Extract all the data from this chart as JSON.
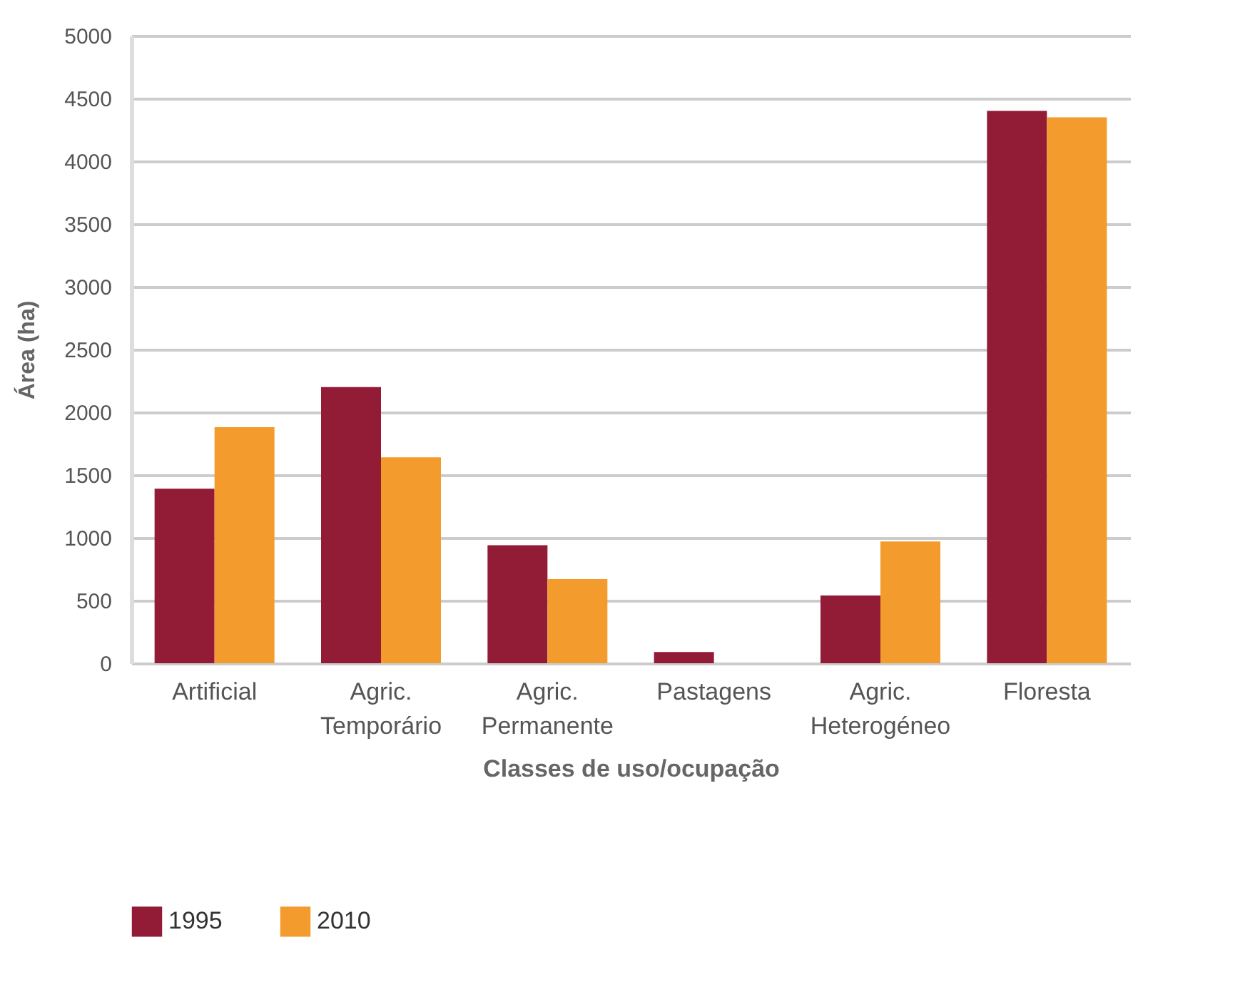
{
  "chart_data": {
    "type": "bar",
    "xlabel": "Classes de uso/ocupação",
    "ylabel": "Área (ha)",
    "categories": [
      "Artificial",
      "Agric.\nTemporário",
      "Agric.\nPermanente",
      "Pastagens",
      "Agric.\nHeterogéneo",
      "Floresta"
    ],
    "series": [
      {
        "name": "1995",
        "color": "#921c36",
        "values": [
          1390,
          2200,
          940,
          90,
          540,
          4400
        ]
      },
      {
        "name": "2010",
        "color": "#f39b2c",
        "values": [
          1880,
          1640,
          670,
          null,
          970,
          4350
        ]
      }
    ],
    "ylim": [
      0,
      5000
    ],
    "yticks": [
      0,
      500,
      1000,
      1500,
      2000,
      2500,
      3000,
      3500,
      4000,
      4500,
      5000
    ],
    "grid": "y",
    "legend": "bottom left"
  }
}
